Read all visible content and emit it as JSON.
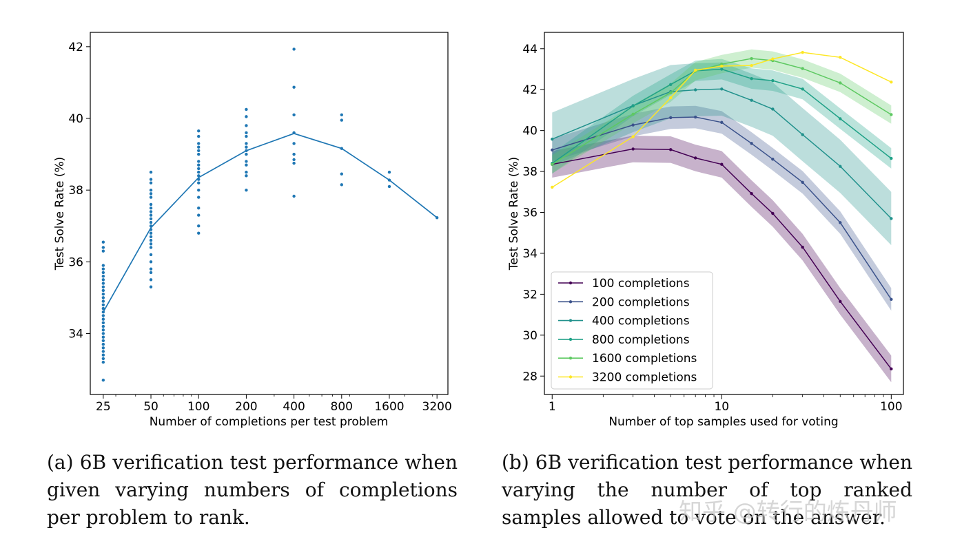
{
  "captions": {
    "a": "(a) 6B verification test performance when given varying numbers of completions per problem to rank.",
    "b": "(b) 6B verification test performance when varying the number of top ranked samples allowed to vote on the answer."
  },
  "watermark": "知乎 @转行的炼丹师",
  "chart_data": [
    {
      "type": "scatter",
      "xlabel": "Number of completions per test problem",
      "ylabel": "Test Solve Rate (%)",
      "x_scale": "log2",
      "xticks": [
        "25",
        "50",
        "100",
        "200",
        "400",
        "800",
        "1600",
        "3200"
      ],
      "yticks": [
        34,
        36,
        38,
        40,
        42
      ],
      "ylim": [
        32.3,
        42.4
      ],
      "color": "#1f77b4",
      "mean_line": {
        "x": [
          25,
          50,
          100,
          200,
          400,
          800,
          1600,
          3200
        ],
        "y": [
          34.6,
          36.95,
          38.35,
          39.1,
          39.58,
          39.16,
          38.28,
          37.23
        ]
      },
      "points": [
        {
          "x": 25,
          "y": [
            32.7,
            33.2,
            33.3,
            33.4,
            33.5,
            33.6,
            33.7,
            33.8,
            33.9,
            34.0,
            34.1,
            34.2,
            34.3,
            34.4,
            34.5,
            34.6,
            34.7,
            34.8,
            34.9,
            35.0,
            35.1,
            35.2,
            35.3,
            35.4,
            35.5,
            35.6,
            35.7,
            35.8,
            35.9,
            36.3,
            36.4,
            36.55
          ]
        },
        {
          "x": 50,
          "y": [
            35.3,
            35.5,
            35.7,
            35.8,
            36.0,
            36.2,
            36.4,
            36.5,
            36.6,
            36.7,
            36.8,
            36.9,
            37.0,
            37.1,
            37.2,
            37.3,
            37.4,
            37.5,
            37.6,
            37.8,
            37.9,
            38.0,
            38.2,
            38.3,
            38.5
          ]
        },
        {
          "x": 100,
          "y": [
            36.8,
            37.0,
            37.3,
            37.5,
            37.8,
            38.0,
            38.2,
            38.3,
            38.4,
            38.5,
            38.6,
            38.7,
            38.8,
            39.0,
            39.1,
            39.2,
            39.3,
            39.5,
            39.65
          ]
        },
        {
          "x": 200,
          "y": [
            38.0,
            38.4,
            38.5,
            38.7,
            38.8,
            39.0,
            39.1,
            39.2,
            39.3,
            39.5,
            39.6,
            39.8,
            40.05,
            40.25
          ]
        },
        {
          "x": 400,
          "y": [
            37.83,
            38.75,
            38.85,
            39.0,
            39.3,
            39.6,
            40.1,
            40.87,
            41.93
          ]
        },
        {
          "x": 800,
          "y": [
            38.15,
            38.45,
            39.16,
            39.95,
            40.1
          ]
        },
        {
          "x": 1600,
          "y": [
            38.1,
            38.28,
            38.5
          ]
        },
        {
          "x": 3200,
          "y": [
            37.23
          ]
        }
      ]
    },
    {
      "type": "line",
      "xlabel": "Number of top samples used for voting",
      "ylabel": "Test Solve Rate (%)",
      "x_scale": "log10",
      "xticks": [
        "1",
        "10",
        "100"
      ],
      "yticks": [
        28,
        30,
        32,
        34,
        36,
        38,
        40,
        42,
        44
      ],
      "ylim": [
        27.1,
        44.8
      ],
      "x": [
        1,
        3,
        5,
        7,
        10,
        15,
        20,
        30,
        50,
        100
      ],
      "legend_position": "lower-left",
      "series": [
        {
          "name": "100 completions",
          "color": "#440154",
          "values": [
            38.35,
            39.1,
            39.07,
            38.66,
            38.35,
            36.92,
            35.95,
            34.3,
            31.65,
            28.35
          ],
          "band": 0.65
        },
        {
          "name": "200 completions",
          "color": "#3b528b",
          "values": [
            39.05,
            40.27,
            40.63,
            40.66,
            40.4,
            39.37,
            38.6,
            37.47,
            35.5,
            31.75
          ],
          "band": 0.55
        },
        {
          "name": "400 completions",
          "color": "#21918c",
          "values": [
            39.58,
            41.22,
            41.9,
            41.99,
            42.03,
            41.48,
            41.05,
            39.8,
            38.25,
            35.7
          ],
          "band": 1.3
        },
        {
          "name": "800 completions",
          "color": "#1fa187",
          "values": [
            38.4,
            41.2,
            42.25,
            42.92,
            43.0,
            42.54,
            42.44,
            42.03,
            40.58,
            38.64
          ],
          "band": 0.5
        },
        {
          "name": "1600 completions",
          "color": "#5ec962",
          "values": [
            38.35,
            40.8,
            41.85,
            42.9,
            43.25,
            43.52,
            43.42,
            43.03,
            42.33,
            40.78
          ],
          "band": 0.45
        },
        {
          "name": "3200 completions",
          "color": "#fde725",
          "values": [
            37.23,
            39.7,
            41.6,
            42.95,
            43.15,
            43.18,
            43.5,
            43.82,
            43.58,
            42.37
          ],
          "band": 0.0
        }
      ]
    }
  ]
}
